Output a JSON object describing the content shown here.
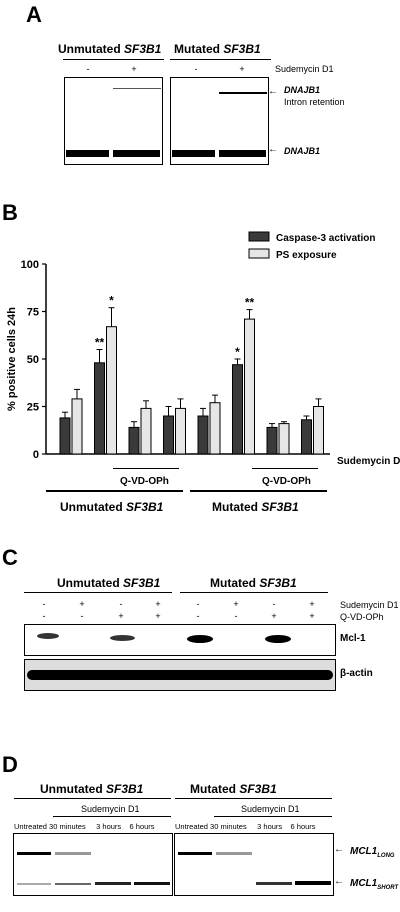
{
  "panelA": {
    "letter": "A",
    "groups": [
      {
        "prefix": "Unmutated ",
        "gene": "SF3B1"
      },
      {
        "prefix": "Mutated ",
        "gene": "SF3B1"
      }
    ],
    "treatment_label": "Sudemycin D1",
    "signs": [
      "-",
      "+",
      "-",
      "+"
    ],
    "band_labels": {
      "intron_gene": "DNAJB1",
      "intron_text": "Intron retention",
      "gene": "DNAJB1"
    }
  },
  "panelB": {
    "letter": "B",
    "treatment_label": "Sudemycin D1",
    "qvd_label": "Q-VD-OPh",
    "signs": [
      "-",
      "+",
      "-",
      "+",
      "-",
      "+",
      "-",
      "+"
    ],
    "groups": [
      {
        "prefix": "Unmutated ",
        "gene": "SF3B1"
      },
      {
        "prefix": "Mutated ",
        "gene": "SF3B1"
      }
    ],
    "significance": [
      "**",
      "*",
      "*",
      "**"
    ],
    "colors": {
      "caspase": "#3a3a3a",
      "ps": "#e6e6e6"
    }
  },
  "chart_data": {
    "type": "bar",
    "title": "",
    "xlabel": "",
    "ylabel": "% positive cells 24h",
    "ylim": [
      0,
      100
    ],
    "yticks": [
      0,
      25,
      50,
      75,
      100
    ],
    "legend_placement": "top-right",
    "categories": [
      "1",
      "2",
      "3",
      "4",
      "5",
      "6",
      "7",
      "8"
    ],
    "series": [
      {
        "name": "Caspase-3 activation",
        "values": [
          19,
          48,
          14,
          20,
          20,
          47,
          14,
          18
        ],
        "errors": [
          3,
          7,
          3,
          5,
          4,
          3,
          2,
          2
        ]
      },
      {
        "name": "PS exposure",
        "values": [
          29,
          67,
          24,
          24,
          27,
          71,
          16,
          25
        ],
        "errors": [
          5,
          10,
          4,
          5,
          4,
          5,
          1,
          4
        ]
      }
    ]
  },
  "panelC": {
    "letter": "C",
    "groups": [
      {
        "prefix": "Unmutated ",
        "gene": "SF3B1"
      },
      {
        "prefix": "Mutated ",
        "gene": "SF3B1"
      }
    ],
    "treatment_label": "Sudemycin D1",
    "qvd_label": "Q-VD-OPh",
    "sud_signs": [
      "-",
      "+",
      "-",
      "+",
      "-",
      "+",
      "-",
      "+"
    ],
    "qvd_signs": [
      "-",
      "-",
      "+",
      "+",
      "-",
      "-",
      "+",
      "+"
    ],
    "blot_labels": [
      "Mcl-1",
      "β-actin"
    ]
  },
  "panelD": {
    "letter": "D",
    "groups": [
      {
        "prefix": "Unmutated ",
        "gene": "SF3B1"
      },
      {
        "prefix": "Mutated ",
        "gene": "SF3B1"
      }
    ],
    "treatment_label": "Sudemycin D1",
    "timepoints": [
      "Untreated",
      "30 minutes",
      "3 hours",
      "6 hours"
    ],
    "band_labels": {
      "long_gene": "MCL1",
      "long_sub": "LONG",
      "short_gene": "MCL1",
      "short_sub": "SHORT"
    }
  }
}
